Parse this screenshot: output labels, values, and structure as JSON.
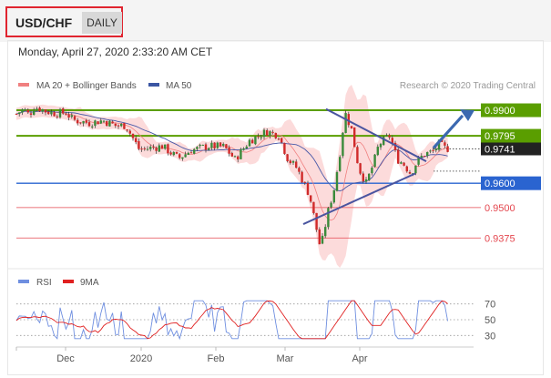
{
  "header": {
    "symbol": "USD/CHF",
    "timeframe": "DAILY"
  },
  "timestamp": "Monday, April 27, 2020 2:33:20 AM CET",
  "legend": {
    "bollinger": "MA 20 + Bollinger Bands",
    "ma50": "MA 50",
    "credit": "Research © 2020 Trading Central"
  },
  "rsi_legend": {
    "rsi": "RSI",
    "ma9": "9MA"
  },
  "colors": {
    "up": "#3a8a3a",
    "down": "#d02a2a",
    "green_level": "#5a9e00",
    "blue_level": "#2a64d0",
    "red_level": "#e4474f",
    "current": "#222222",
    "band": "#fcd5d5",
    "ma50": "#4a5aa8",
    "rsi": "#6f8fe0",
    "rsi_ma": "#e02020"
  },
  "chart_data": [
    {
      "type": "candlestick",
      "title": "USD/CHF",
      "timeframe": "DAILY",
      "x_tick_labels": [
        "Dec",
        "2020",
        "Feb",
        "Mar",
        "Apr"
      ],
      "ylim": [
        0.926,
        0.996
      ],
      "price_levels": [
        {
          "value": 0.99,
          "label": "0.9900",
          "style": "resistance"
        },
        {
          "value": 0.9795,
          "label": "0.9795",
          "style": "resistance"
        },
        {
          "value": 0.9741,
          "label": "0.9741",
          "style": "current"
        },
        {
          "value": 0.96,
          "label": "0.9600",
          "style": "pivot"
        },
        {
          "value": 0.95,
          "label": "0.9500",
          "style": "support"
        },
        {
          "value": 0.9375,
          "label": "0.9375",
          "style": "support"
        }
      ],
      "series": [
        {
          "name": "MA 20 + Bollinger Bands",
          "color": "#f08080"
        },
        {
          "name": "MA 50",
          "color": "#4a5aa8"
        }
      ]
    },
    {
      "type": "line",
      "title": "RSI",
      "y_ticks": [
        70,
        50,
        30
      ],
      "ylim": [
        20,
        80
      ],
      "series": [
        {
          "name": "RSI",
          "color": "#6f8fe0"
        },
        {
          "name": "9MA",
          "color": "#e02020"
        }
      ]
    }
  ]
}
